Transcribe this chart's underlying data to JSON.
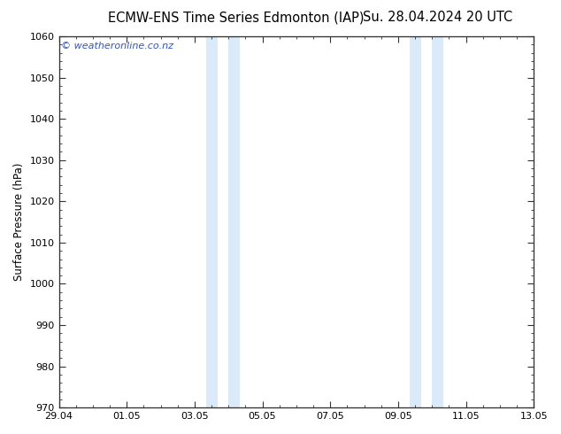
{
  "title_left": "ECMW-ENS Time Series Edmonton (IAP)",
  "title_right": "Su. 28.04.2024 20 UTC",
  "ylabel": "Surface Pressure (hPa)",
  "ylim": [
    970,
    1060
  ],
  "yticks": [
    970,
    980,
    990,
    1000,
    1010,
    1020,
    1030,
    1040,
    1050,
    1060
  ],
  "xlim_start": 0,
  "xlim_end": 14,
  "xtick_positions": [
    0,
    2,
    4,
    6,
    8,
    10,
    12,
    14
  ],
  "xtick_labels": [
    "29.04",
    "01.05",
    "03.05",
    "05.05",
    "07.05",
    "09.05",
    "11.05",
    "13.05"
  ],
  "shaded_bands": [
    {
      "xmin": 4.33,
      "xmax": 4.67
    },
    {
      "xmin": 5.0,
      "xmax": 5.33
    },
    {
      "xmin": 10.33,
      "xmax": 10.67
    },
    {
      "xmin": 11.0,
      "xmax": 11.33
    }
  ],
  "band_color": "#daeaf8",
  "background_color": "#ffffff",
  "plot_bg_color": "#ffffff",
  "watermark_text": "© weatheronline.co.nz",
  "watermark_color": "#3355bb",
  "title_fontsize": 10.5,
  "label_fontsize": 8.5,
  "tick_fontsize": 8,
  "watermark_fontsize": 8,
  "spine_color": "#333333",
  "tick_color": "#333333"
}
